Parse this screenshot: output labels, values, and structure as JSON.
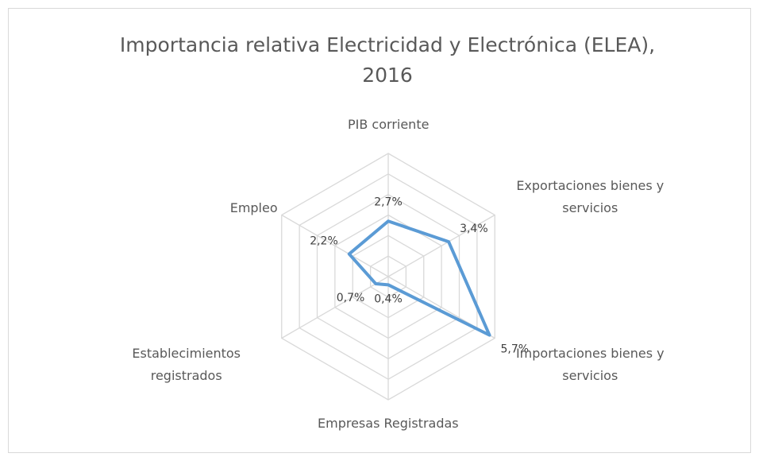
{
  "chart_data": {
    "type": "radar",
    "title": "Importancia relativa Electricidad y Electrónica (ELEA), 2016",
    "categories": [
      "PIB corriente",
      "Exportaciones bienes y servicios",
      "Importaciones bienes y servicios",
      "Empresas Registradas",
      "Establecimientos registrados",
      "Empleo"
    ],
    "series": [
      {
        "name": "ELEA",
        "color": "#5b9bd5",
        "values": [
          2.7,
          3.4,
          5.7,
          0.4,
          0.7,
          2.2
        ],
        "value_labels": [
          "2,7%",
          "3,4%",
          "5,7%",
          "0,4%",
          "0,7%",
          "2,2%"
        ]
      }
    ],
    "ylim": [
      0,
      6
    ],
    "yticks": [
      1,
      2,
      3,
      4,
      5,
      6
    ],
    "grid": true
  }
}
